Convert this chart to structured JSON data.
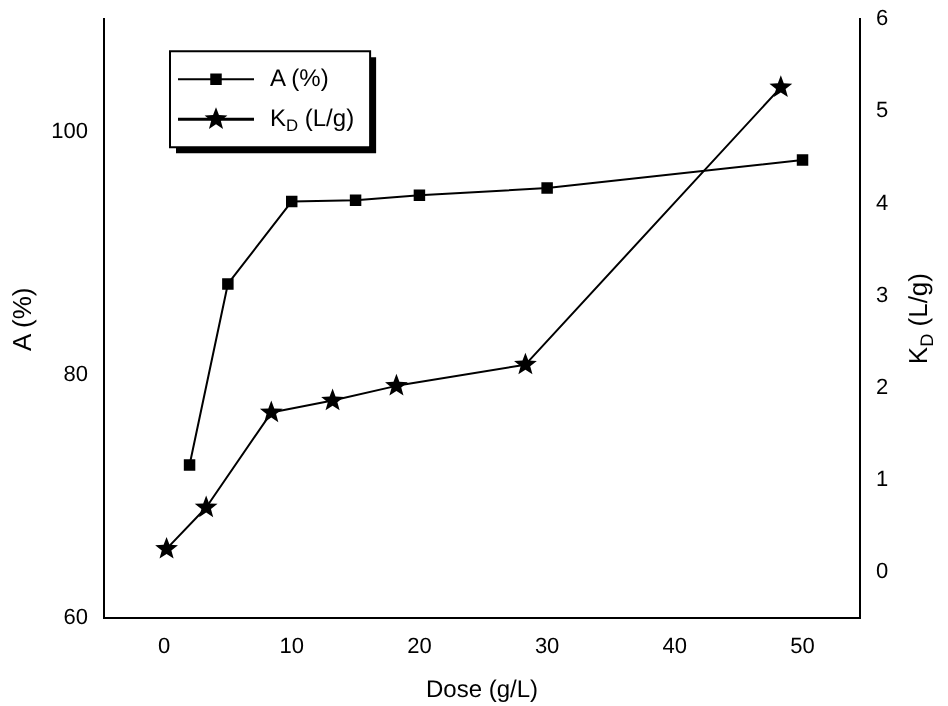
{
  "chart_data": {
    "type": "line",
    "xlabel": "Dose (g/L)",
    "ylabel": "A (%)",
    "y2label": "K$_{D}$ (L/g)",
    "xlim": [
      -4.7,
      54.5
    ],
    "xticks": [
      0,
      10,
      20,
      30,
      40,
      50
    ],
    "ylim": [
      60,
      109.3
    ],
    "yticks": [
      60,
      80,
      100
    ],
    "y2lim": [
      -0.5,
      6
    ],
    "y2ticks": [
      0,
      1,
      2,
      3,
      4,
      5,
      6
    ],
    "grid": false,
    "legend": "top left",
    "series": [
      {
        "name": "A (%)",
        "color": "#000000",
        "marker": "square",
        "x": [
          2,
          5,
          10,
          15,
          20,
          30,
          50
        ],
        "values": [
          72.6,
          87.5,
          94.3,
          94.4,
          94.8,
          95.4,
          97.7
        ]
      },
      {
        "name": "K$_{D}$ (L/g)",
        "color": "#000000",
        "marker": "star",
        "axis": "y2",
        "x": [
          0.2,
          3.3,
          8.4,
          13.2,
          18.2,
          28.3,
          48.3
        ],
        "values": [
          0.25,
          0.7,
          1.73,
          1.86,
          2.02,
          2.25,
          5.26
        ]
      }
    ]
  }
}
